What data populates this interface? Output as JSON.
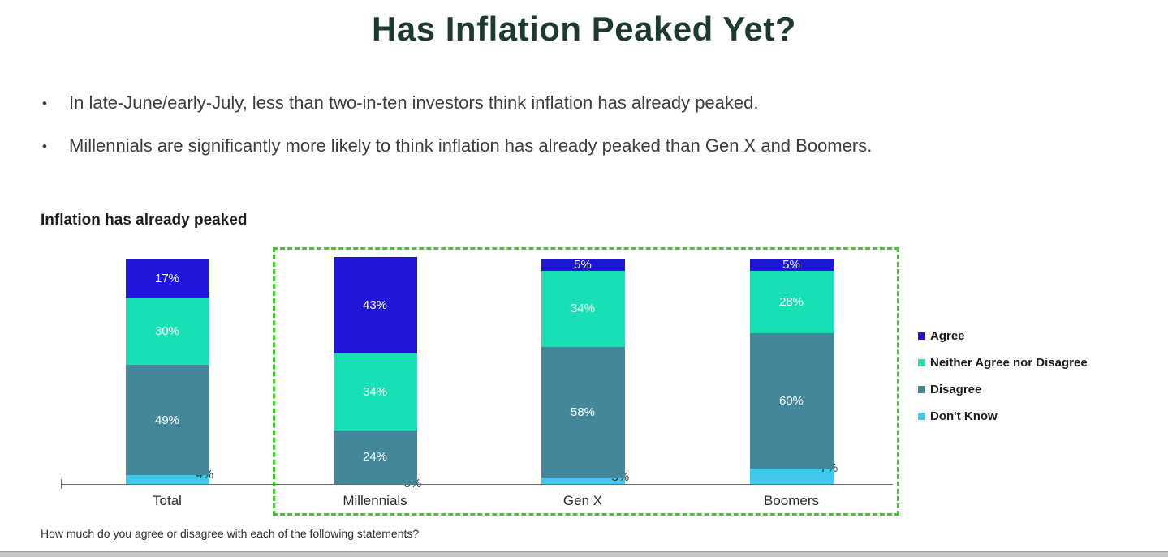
{
  "page": {
    "title": "Has Inflation Peaked Yet?",
    "bullet_marker": "•",
    "bullets": [
      "In late-June/early-July, less than two-in-ten investors think inflation has already peaked.",
      "Millennials are significantly more likely to think inflation has already peaked than Gen X and Boomers."
    ],
    "chart_heading": "Inflation has already peaked",
    "footnote": "How much do you agree or disagree with each of the following statements?"
  },
  "chart_data": {
    "type": "bar",
    "stacked": true,
    "title": "Inflation has already peaked",
    "categories": [
      "Total",
      "Millennials",
      "Gen X",
      "Boomers"
    ],
    "series": [
      {
        "name": "Agree",
        "color": "#1f16d9",
        "label_color": "#ffffff",
        "label_position": "inside",
        "values": [
          17,
          43,
          5,
          5
        ]
      },
      {
        "name": "Neither Agree nor Disagree",
        "color": "#17e0b4",
        "label_color": "#ffffff",
        "label_position": "inside",
        "values": [
          30,
          34,
          34,
          28
        ]
      },
      {
        "name": "Disagree",
        "color": "#44879a",
        "label_color": "#ffffff",
        "label_position": "inside",
        "values": [
          49,
          24,
          58,
          60
        ]
      },
      {
        "name": "Don't Know",
        "color": "#40c8ee",
        "label_color": "#333333",
        "label_position": "outside-top-right",
        "values": [
          4,
          0,
          3,
          7
        ]
      }
    ],
    "stack_order_bottom_to_top": [
      "Don't Know",
      "Disagree",
      "Neither Agree nor Disagree",
      "Agree"
    ],
    "value_suffix": "%",
    "ylim": [
      0,
      100
    ],
    "grid": false,
    "legend_position": "right",
    "highlight_box": {
      "categories": [
        "Millennials",
        "Gen X",
        "Boomers"
      ],
      "border_color": "#3ccc23",
      "style": "dashed"
    }
  }
}
